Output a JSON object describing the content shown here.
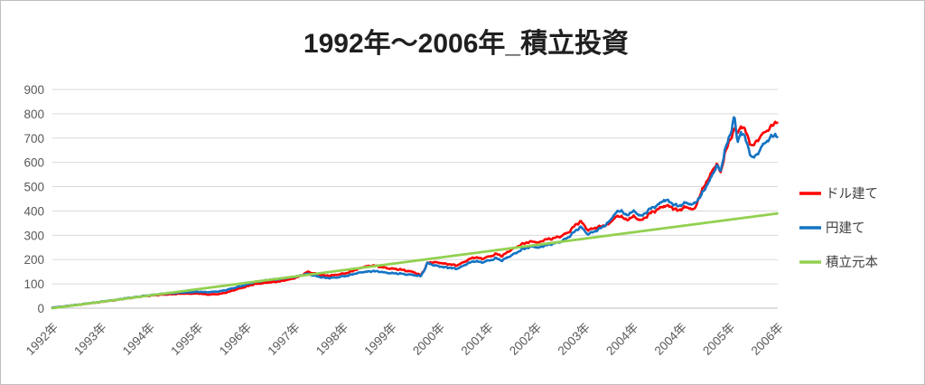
{
  "chart_data": {
    "type": "line",
    "title": "1992年～2006年_積立投資",
    "legend_position": "right",
    "grid": true,
    "x_axis": {
      "labels": [
        "1992年",
        "1993年",
        "1994年",
        "1995年",
        "1996年",
        "1997年",
        "1998年",
        "1999年",
        "2000年",
        "2001年",
        "2002年",
        "2003年",
        "2004年",
        "2004年",
        "2005年",
        "2006年"
      ]
    },
    "y_axis": {
      "min": 0,
      "max": 900,
      "step": 100,
      "ticks": [
        0,
        100,
        200,
        300,
        400,
        500,
        600,
        700,
        800,
        900
      ]
    },
    "x_range": [
      1992.0,
      2006.35
    ],
    "series": [
      {
        "name": "ドル建て",
        "id": "dollar",
        "color": "#FF0000",
        "width": 2.6,
        "noisy": true,
        "points": [
          [
            1992.0,
            2
          ],
          [
            1992.3,
            9
          ],
          [
            1992.6,
            16
          ],
          [
            1992.9,
            24
          ],
          [
            1993.2,
            32
          ],
          [
            1993.5,
            41
          ],
          [
            1993.8,
            49
          ],
          [
            1994.0,
            53
          ],
          [
            1994.3,
            57
          ],
          [
            1994.6,
            60
          ],
          [
            1994.9,
            60
          ],
          [
            1995.1,
            56
          ],
          [
            1995.3,
            58
          ],
          [
            1995.5,
            68
          ],
          [
            1995.75,
            84
          ],
          [
            1996.0,
            99
          ],
          [
            1996.2,
            104
          ],
          [
            1996.45,
            109
          ],
          [
            1996.7,
            118
          ],
          [
            1996.9,
            132
          ],
          [
            1997.05,
            149
          ],
          [
            1997.2,
            143
          ],
          [
            1997.4,
            133
          ],
          [
            1997.6,
            137
          ],
          [
            1997.8,
            143
          ],
          [
            1998.0,
            158
          ],
          [
            1998.2,
            172
          ],
          [
            1998.35,
            176
          ],
          [
            1998.5,
            169
          ],
          [
            1998.7,
            163
          ],
          [
            1998.95,
            157
          ],
          [
            1999.15,
            148
          ],
          [
            1999.28,
            135
          ],
          [
            1999.34,
            152
          ],
          [
            1999.42,
            186
          ],
          [
            1999.55,
            189
          ],
          [
            1999.7,
            186
          ],
          [
            1999.85,
            180
          ],
          [
            2000.0,
            176
          ],
          [
            2000.2,
            196
          ],
          [
            2000.35,
            210
          ],
          [
            2000.5,
            204
          ],
          [
            2000.65,
            212
          ],
          [
            2000.78,
            224
          ],
          [
            2000.9,
            215
          ],
          [
            2001.1,
            244
          ],
          [
            2001.3,
            264
          ],
          [
            2001.5,
            276
          ],
          [
            2001.62,
            269
          ],
          [
            2001.75,
            282
          ],
          [
            2001.9,
            288
          ],
          [
            2002.05,
            294
          ],
          [
            2002.2,
            312
          ],
          [
            2002.35,
            342
          ],
          [
            2002.45,
            357
          ],
          [
            2002.6,
            322
          ],
          [
            2002.8,
            333
          ],
          [
            2003.0,
            346
          ],
          [
            2003.15,
            375
          ],
          [
            2003.25,
            380
          ],
          [
            2003.35,
            363
          ],
          [
            2003.5,
            376
          ],
          [
            2003.65,
            361
          ],
          [
            2003.8,
            386
          ],
          [
            2004.0,
            410
          ],
          [
            2004.1,
            422
          ],
          [
            2004.25,
            415
          ],
          [
            2004.38,
            402
          ],
          [
            2004.5,
            415
          ],
          [
            2004.62,
            410
          ],
          [
            2004.7,
            406
          ],
          [
            2004.8,
            460
          ],
          [
            2004.9,
            504
          ],
          [
            2005.0,
            540
          ],
          [
            2005.08,
            578
          ],
          [
            2005.15,
            596
          ],
          [
            2005.22,
            554
          ],
          [
            2005.3,
            633
          ],
          [
            2005.42,
            700
          ],
          [
            2005.49,
            745
          ],
          [
            2005.55,
            714
          ],
          [
            2005.62,
            751
          ],
          [
            2005.7,
            732
          ],
          [
            2005.85,
            664
          ],
          [
            2005.94,
            689
          ],
          [
            2006.1,
            726
          ],
          [
            2006.2,
            744
          ],
          [
            2006.3,
            763
          ],
          [
            2006.35,
            769
          ]
        ]
      },
      {
        "name": "円建て",
        "id": "yen",
        "color": "#1474C4",
        "width": 2.6,
        "noisy": true,
        "points": [
          [
            1992.0,
            2
          ],
          [
            1992.3,
            9
          ],
          [
            1992.6,
            17
          ],
          [
            1992.9,
            25
          ],
          [
            1993.2,
            33
          ],
          [
            1993.5,
            42
          ],
          [
            1993.8,
            50
          ],
          [
            1994.0,
            55
          ],
          [
            1994.3,
            61
          ],
          [
            1994.6,
            65
          ],
          [
            1994.9,
            67
          ],
          [
            1995.1,
            66
          ],
          [
            1995.3,
            69
          ],
          [
            1995.5,
            78
          ],
          [
            1995.75,
            92
          ],
          [
            1996.0,
            107
          ],
          [
            1996.2,
            114
          ],
          [
            1996.45,
            119
          ],
          [
            1996.7,
            126
          ],
          [
            1996.9,
            134
          ],
          [
            1997.05,
            141
          ],
          [
            1997.2,
            133
          ],
          [
            1997.4,
            124
          ],
          [
            1997.6,
            126
          ],
          [
            1997.8,
            132
          ],
          [
            1998.0,
            143
          ],
          [
            1998.2,
            150
          ],
          [
            1998.35,
            153
          ],
          [
            1998.5,
            149
          ],
          [
            1998.7,
            144
          ],
          [
            1998.95,
            141
          ],
          [
            1999.15,
            136
          ],
          [
            1999.28,
            131
          ],
          [
            1999.34,
            150
          ],
          [
            1999.42,
            186
          ],
          [
            1999.55,
            176
          ],
          [
            1999.7,
            171
          ],
          [
            1999.85,
            166
          ],
          [
            2000.0,
            162
          ],
          [
            2000.2,
            182
          ],
          [
            2000.35,
            194
          ],
          [
            2000.5,
            189
          ],
          [
            2000.65,
            196
          ],
          [
            2000.78,
            206
          ],
          [
            2000.9,
            196
          ],
          [
            2001.1,
            220
          ],
          [
            2001.3,
            242
          ],
          [
            2001.5,
            255
          ],
          [
            2001.62,
            248
          ],
          [
            2001.75,
            258
          ],
          [
            2001.9,
            266
          ],
          [
            2002.05,
            272
          ],
          [
            2002.2,
            292
          ],
          [
            2002.35,
            318
          ],
          [
            2002.45,
            334
          ],
          [
            2002.6,
            305
          ],
          [
            2002.8,
            322
          ],
          [
            2003.0,
            353
          ],
          [
            2003.15,
            392
          ],
          [
            2003.25,
            404
          ],
          [
            2003.35,
            382
          ],
          [
            2003.5,
            398
          ],
          [
            2003.65,
            379
          ],
          [
            2003.8,
            404
          ],
          [
            2004.0,
            428
          ],
          [
            2004.1,
            447
          ],
          [
            2004.25,
            432
          ],
          [
            2004.38,
            420
          ],
          [
            2004.5,
            432
          ],
          [
            2004.62,
            428
          ],
          [
            2004.7,
            430
          ],
          [
            2004.8,
            455
          ],
          [
            2004.9,
            486
          ],
          [
            2005.0,
            525
          ],
          [
            2005.08,
            560
          ],
          [
            2005.15,
            591
          ],
          [
            2005.22,
            560
          ],
          [
            2005.3,
            646
          ],
          [
            2005.42,
            722
          ],
          [
            2005.49,
            800
          ],
          [
            2005.55,
            677
          ],
          [
            2005.62,
            726
          ],
          [
            2005.7,
            701
          ],
          [
            2005.85,
            615
          ],
          [
            2005.94,
            633
          ],
          [
            2006.1,
            682
          ],
          [
            2006.2,
            703
          ],
          [
            2006.3,
            713
          ],
          [
            2006.35,
            707
          ]
        ]
      },
      {
        "name": "積立元本",
        "id": "principal",
        "color": "#92D050",
        "width": 2.8,
        "noisy": false,
        "points": [
          [
            1992.0,
            0
          ],
          [
            2006.35,
            390
          ]
        ]
      }
    ],
    "texture": {
      "noise_base": 1.2,
      "noise_scale": 0.016
    }
  },
  "colors": {
    "background": "#FFFFFF",
    "border": "#BFBFBF",
    "grid": "#D9D9D9",
    "axis_line": "#BFBFBF",
    "tick_label": "#595959",
    "title": "#1F1F1F",
    "legend_label": "#404040"
  }
}
